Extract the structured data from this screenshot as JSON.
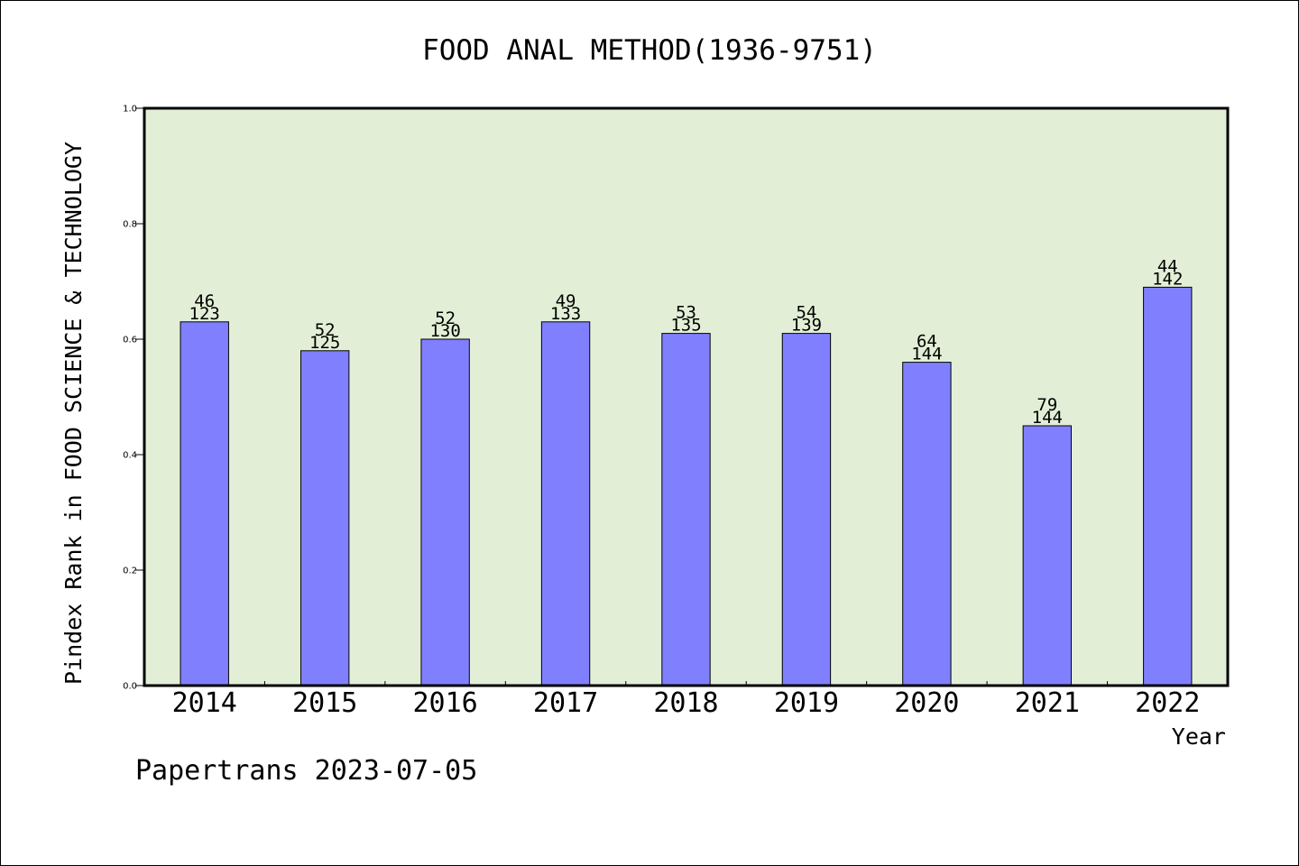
{
  "chart_data": {
    "type": "bar",
    "title": "FOOD ANAL METHOD(1936-9751)",
    "xlabel": "Year",
    "ylabel": "Pindex Rank in FOOD SCIENCE & TECHNOLOGY",
    "ylim": [
      0,
      1.0
    ],
    "yticks": [
      "0.0",
      "0.2",
      "0.4",
      "0.6",
      "0.8",
      "1.0"
    ],
    "categories": [
      "2014",
      "2015",
      "2016",
      "2017",
      "2018",
      "2019",
      "2020",
      "2021",
      "2022"
    ],
    "values": [
      0.63,
      0.58,
      0.6,
      0.63,
      0.61,
      0.61,
      0.56,
      0.45,
      0.69
    ],
    "rank_labels": [
      "46",
      "52",
      "52",
      "49",
      "53",
      "54",
      "64",
      "79",
      "44"
    ],
    "total_labels": [
      "123",
      "125",
      "130",
      "133",
      "135",
      "139",
      "144",
      "144",
      "142"
    ],
    "grid": false,
    "legend": "none",
    "colors": {
      "bar_fill": "#8080ff",
      "plot_background": "#e2efd6",
      "axis": "#000000"
    }
  },
  "footer": "Papertrans 2023-07-05"
}
